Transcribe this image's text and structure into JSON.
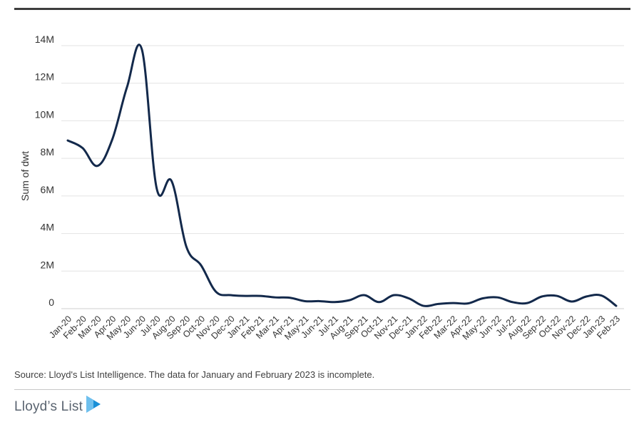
{
  "chart_data": {
    "type": "line",
    "title": "",
    "xlabel": "",
    "ylabel": "Sum of dwt",
    "ylim": [
      0,
      14000000
    ],
    "yticks": [
      0,
      2000000,
      4000000,
      6000000,
      8000000,
      10000000,
      12000000,
      14000000
    ],
    "ytick_labels": [
      "0",
      "2M",
      "4M",
      "6M",
      "8M",
      "10M",
      "12M",
      "14M"
    ],
    "grid": true,
    "legend": "none",
    "line_color": "#13294b",
    "categories": [
      "Jan-20",
      "Feb-20",
      "Mar-20",
      "Apr-20",
      "May-20",
      "Jun-20",
      "Jul-20",
      "Aug-20",
      "Sep-20",
      "Oct-20",
      "Nov-20",
      "Dec-20",
      "Jan-21",
      "Feb-21",
      "Mar-21",
      "Apr-21",
      "May-21",
      "Jun-21",
      "Jul-21",
      "Aug-21",
      "Sep-21",
      "Oct-21",
      "Nov-21",
      "Dec-21",
      "Jan-22",
      "Feb-22",
      "Mar-22",
      "Apr-22",
      "May-22",
      "Jun-22",
      "Jul-22",
      "Aug-22",
      "Sep-22",
      "Oct-22",
      "Nov-22",
      "Dec-22",
      "Jan-23",
      "Feb-23"
    ],
    "series": [
      {
        "values": [
          8950000,
          8550000,
          7600000,
          9000000,
          11800000,
          13800000,
          6400000,
          6800000,
          3300000,
          2300000,
          900000,
          720000,
          680000,
          680000,
          600000,
          580000,
          400000,
          400000,
          350000,
          450000,
          720000,
          350000,
          720000,
          550000,
          150000,
          250000,
          300000,
          280000,
          550000,
          600000,
          350000,
          300000,
          650000,
          680000,
          380000,
          650000,
          700000,
          150000
        ]
      }
    ]
  },
  "footer": {
    "source": "Source: Lloyd's List Intelligence. The data for January and February 2023 is incomplete.",
    "brand": "Lloyd’s List"
  },
  "colors": {
    "brand_blue": "#1a8fd6",
    "axis_text": "#333333",
    "grid": "#e3e3e3"
  }
}
